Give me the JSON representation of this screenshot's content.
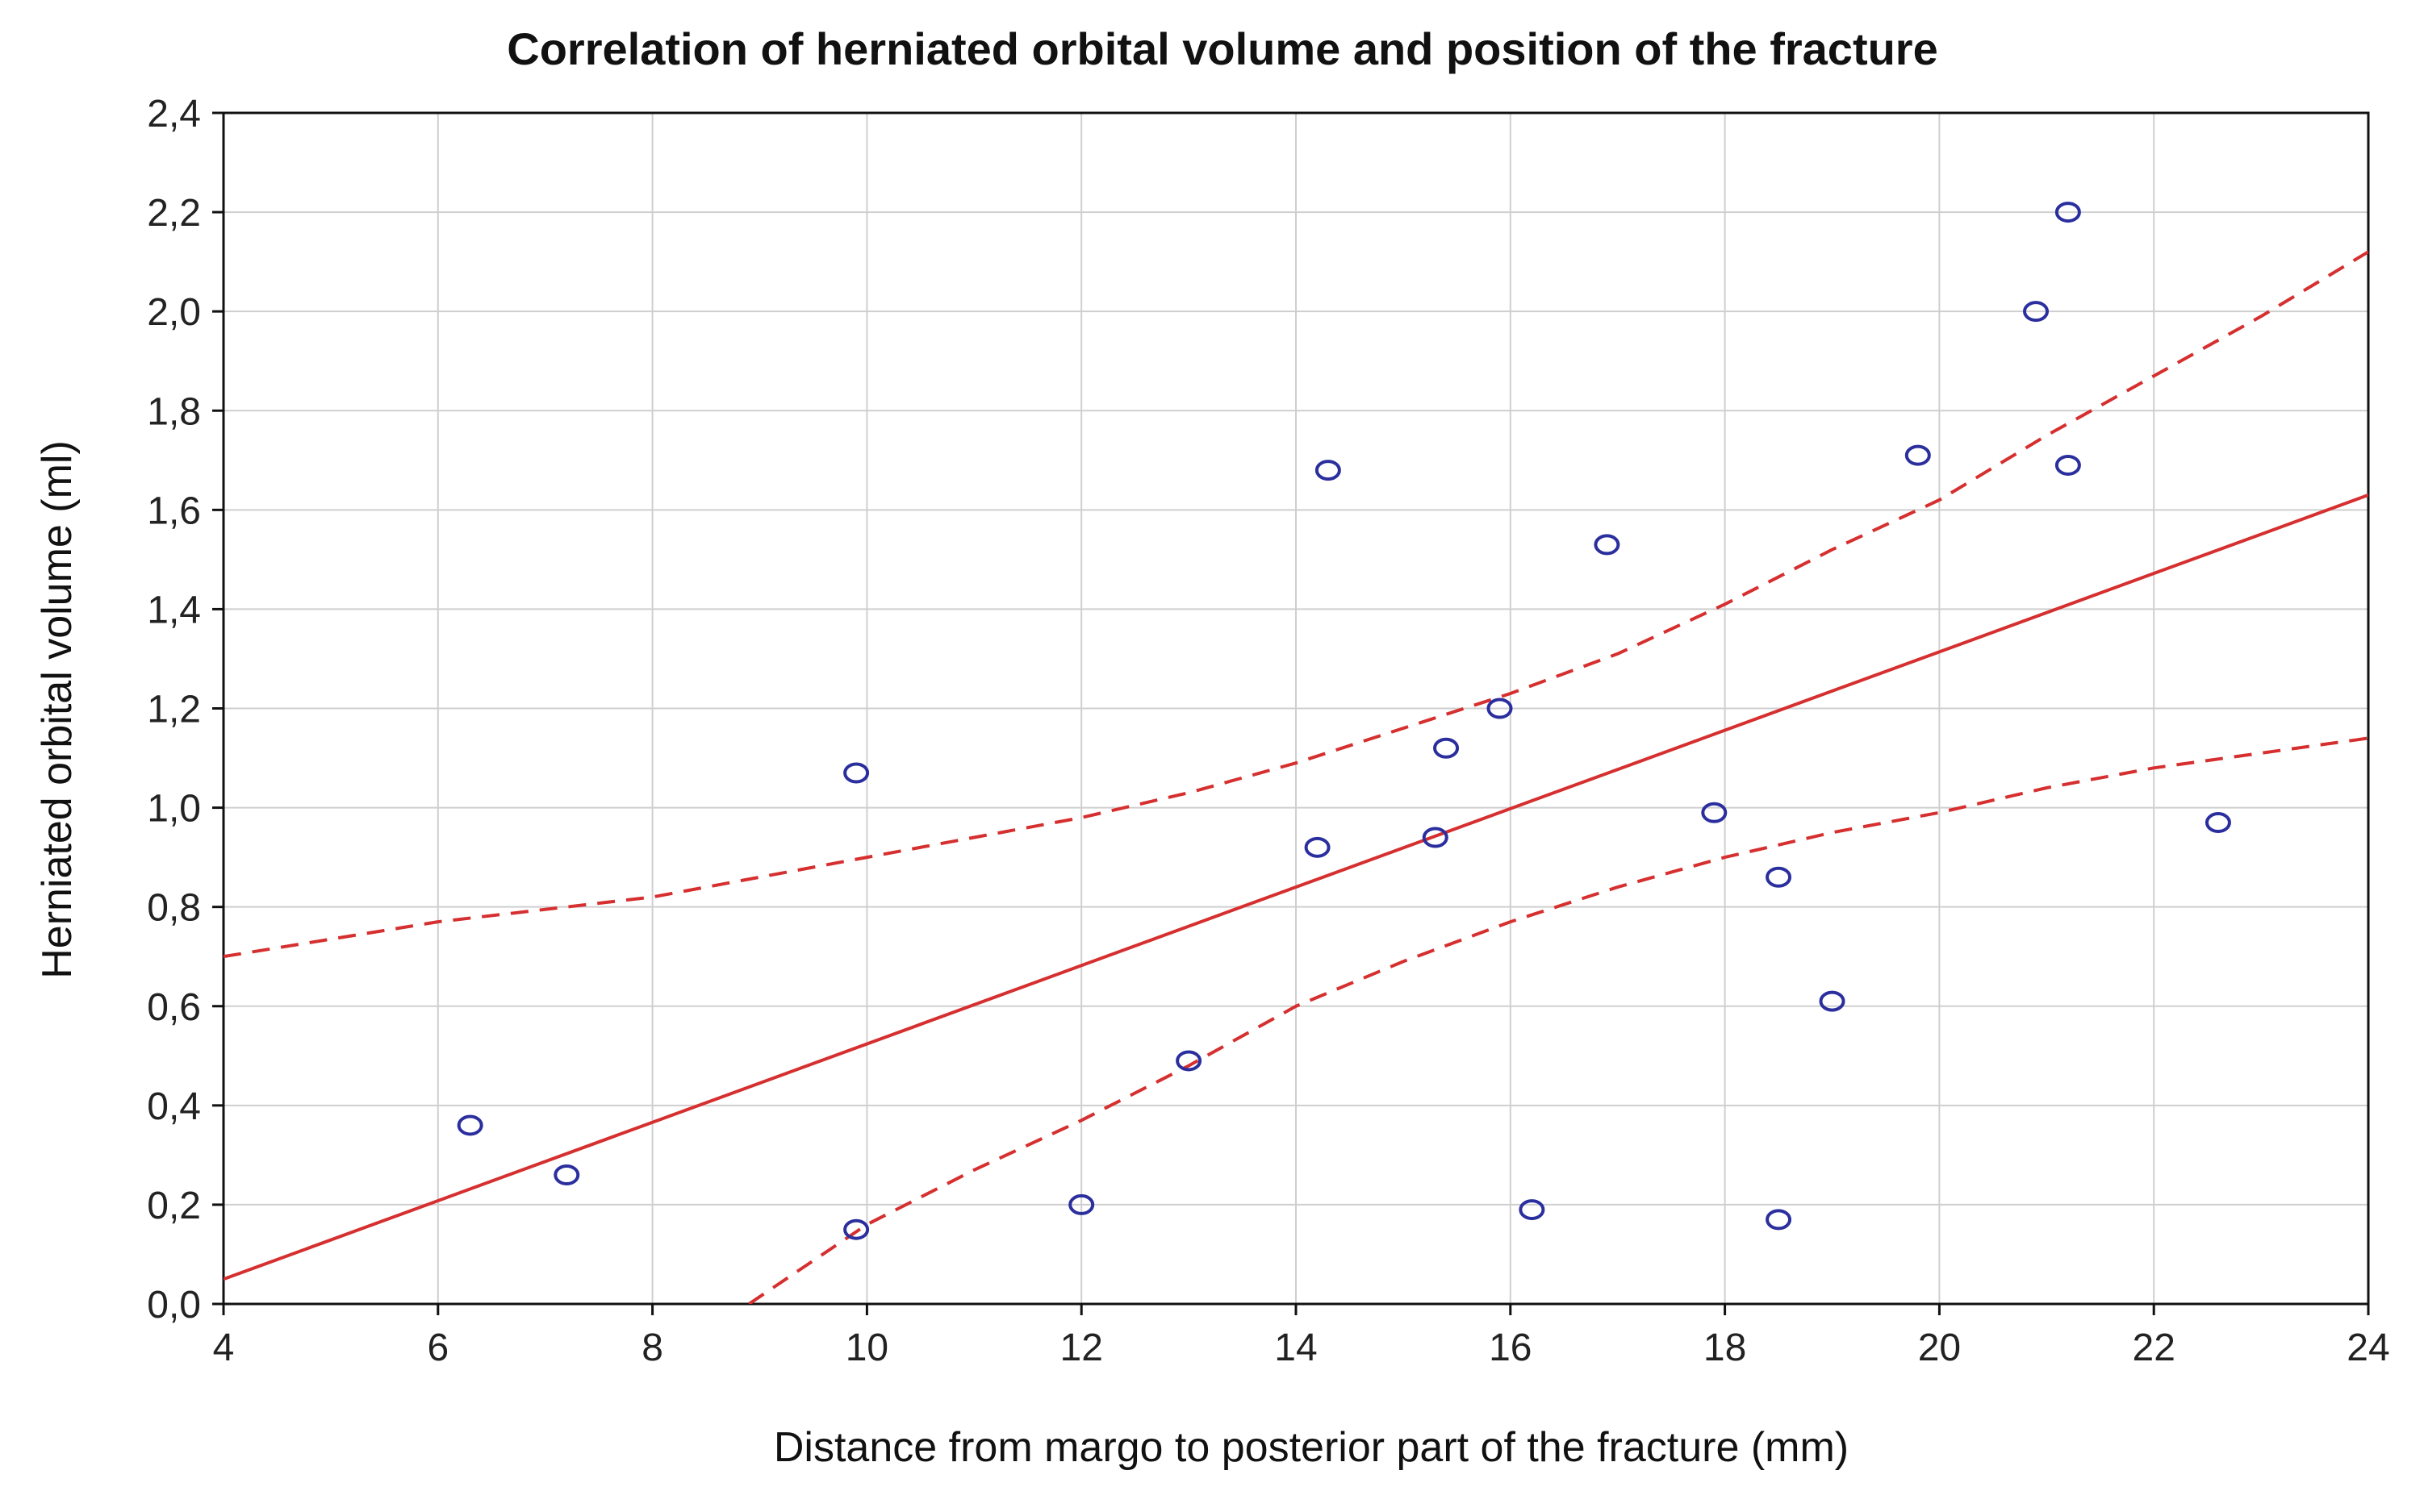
{
  "chart_data": {
    "type": "scatter",
    "title": "Correlation of herniated orbital volume and position of the fracture",
    "xlabel": "Distance from margo to posterior part of the fracture (mm)",
    "ylabel": "Herniated orbital volume (ml)",
    "xlim": [
      4,
      24
    ],
    "ylim": [
      0.0,
      2.4
    ],
    "x_ticks": [
      4,
      6,
      8,
      10,
      12,
      14,
      16,
      18,
      20,
      22,
      24
    ],
    "x_tick_labels": [
      "4",
      "6",
      "8",
      "10",
      "12",
      "14",
      "16",
      "18",
      "20",
      "22",
      "24"
    ],
    "y_ticks": [
      0.0,
      0.2,
      0.4,
      0.6,
      0.8,
      1.0,
      1.2,
      1.4,
      1.6,
      1.8,
      2.0,
      2.2,
      2.4
    ],
    "y_tick_labels": [
      "0,0",
      "0,2",
      "0,4",
      "0,6",
      "0,8",
      "1,0",
      "1,2",
      "1,4",
      "1,6",
      "1,8",
      "2,0",
      "2,2",
      "2,4"
    ],
    "grid": true,
    "series": [
      {
        "marker": "circle-open",
        "color": "#2b2f9e",
        "x": [
          6.3,
          7.2,
          9.9,
          9.9,
          12.0,
          13.0,
          14.2,
          14.3,
          15.3,
          15.4,
          15.9,
          16.2,
          16.9,
          17.9,
          18.5,
          18.5,
          19.0,
          19.8,
          20.9,
          21.2,
          21.2,
          22.6
        ],
        "y": [
          0.36,
          0.26,
          1.07,
          0.15,
          0.2,
          0.49,
          0.92,
          1.68,
          0.94,
          1.12,
          1.2,
          0.19,
          1.53,
          0.99,
          0.86,
          0.17,
          0.61,
          1.71,
          2.0,
          2.2,
          1.69,
          0.97
        ]
      }
    ],
    "regression_line": {
      "color": "#d62f2f",
      "style": "solid",
      "x": [
        4,
        24
      ],
      "y": [
        0.05,
        1.63
      ]
    },
    "confidence_bands": [
      {
        "color": "#d62f2f",
        "style": "dashed",
        "x": [
          4,
          6,
          8,
          10,
          12,
          13,
          14,
          15,
          16,
          17,
          18,
          19,
          20,
          21,
          22,
          23,
          24
        ],
        "y": [
          0.7,
          0.77,
          0.82,
          0.9,
          0.98,
          1.03,
          1.09,
          1.16,
          1.23,
          1.31,
          1.41,
          1.52,
          1.62,
          1.75,
          1.87,
          1.99,
          2.12
        ]
      },
      {
        "color": "#d62f2f",
        "style": "dashed",
        "x": [
          8.9,
          10,
          11,
          12,
          13,
          14,
          15,
          16,
          17,
          18,
          19,
          20,
          21,
          22,
          23,
          24
        ],
        "y": [
          0.0,
          0.16,
          0.27,
          0.37,
          0.48,
          0.6,
          0.69,
          0.77,
          0.84,
          0.9,
          0.95,
          0.99,
          1.04,
          1.08,
          1.11,
          1.14
        ]
      }
    ]
  }
}
